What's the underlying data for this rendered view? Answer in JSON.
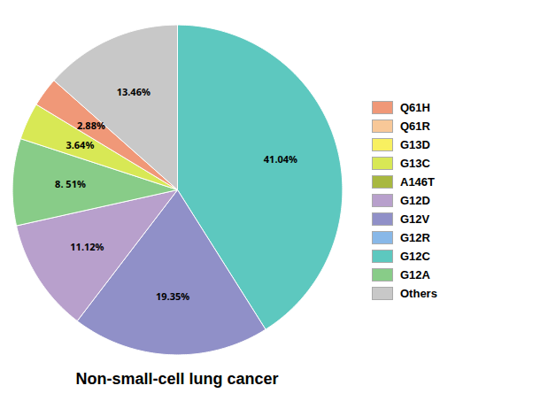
{
  "chart_data": {
    "type": "pie",
    "title": "Non-small-cell lung cancer",
    "categories": [
      "G12C",
      "G12V",
      "G12D",
      "G12A",
      "G13C",
      "Q61H",
      "Others"
    ],
    "values": [
      41.04,
      19.35,
      11.12,
      8.51,
      3.64,
      2.88,
      13.46
    ],
    "value_labels": [
      "41.04%",
      "19.35%",
      "11.12%",
      "8. 51%",
      "3.64%",
      "2.88%",
      "13.46%"
    ],
    "colors": [
      "#5dc8bf",
      "#9090c8",
      "#b8a0cc",
      "#88cc88",
      "#d8e855",
      "#f09878",
      "#c8c8c8"
    ],
    "data_labels": true,
    "tick_labels": false,
    "legend": "right",
    "legend_entries": [
      {
        "name": "Q61H",
        "color": "#f09878"
      },
      {
        "name": "Q61R",
        "color": "#f8c898"
      },
      {
        "name": "G13D",
        "color": "#f8f060"
      },
      {
        "name": "G13C",
        "color": "#d8e855"
      },
      {
        "name": "A146T",
        "color": "#a8b840"
      },
      {
        "name": "G12D",
        "color": "#b8a0cc"
      },
      {
        "name": "G12V",
        "color": "#9090c8"
      },
      {
        "name": "G12R",
        "color": "#88b8e8"
      },
      {
        "name": "G12C",
        "color": "#5dc8bf"
      },
      {
        "name": "G12A",
        "color": "#88cc88"
      },
      {
        "name": "Others",
        "color": "#c8c8c8"
      }
    ]
  }
}
